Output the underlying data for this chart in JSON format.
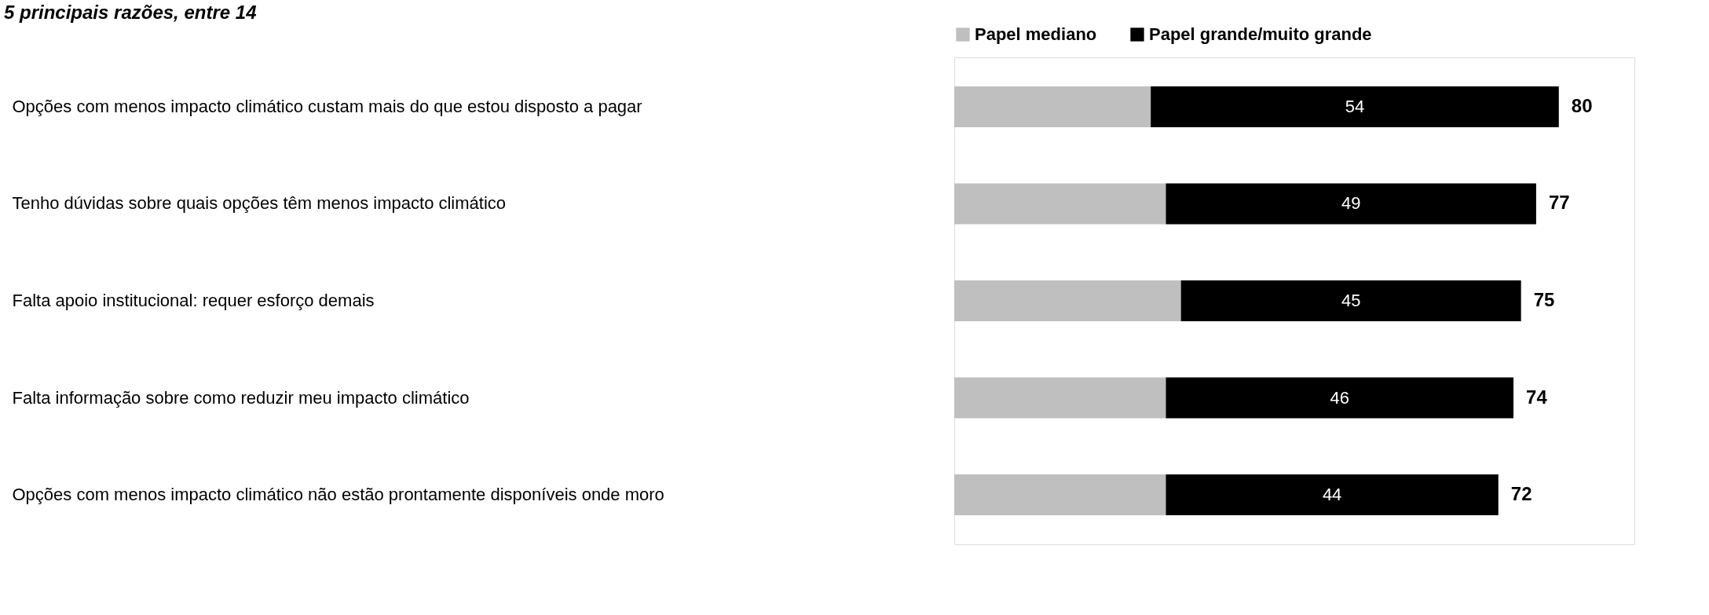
{
  "chart_data": {
    "type": "bar",
    "orientation": "horizontal",
    "stacked": true,
    "title": "5 principais razões, entre 14",
    "categories": [
      "Opções com menos impacto climático custam mais do que estou disposto a pagar",
      "Tenho dúvidas sobre quais opções têm menos impacto climático",
      "Falta apoio institucional: requer esforço demais",
      "Falta informação sobre como reduzir meu impacto climático",
      "Opções com menos impacto climático não estão prontamente disponíveis onde moro"
    ],
    "series": [
      {
        "name": "Papel mediano",
        "color": "#bfbfbf",
        "values": [
          26,
          28,
          30,
          28,
          28
        ]
      },
      {
        "name": "Papel grande/muito grande",
        "color": "#000000",
        "values": [
          54,
          49,
          45,
          46,
          44
        ],
        "value_labels": [
          "54",
          "49",
          "45",
          "46",
          "44"
        ]
      }
    ],
    "totals": [
      "80",
      "77",
      "75",
      "74",
      "72"
    ],
    "xlim": [
      0,
      90
    ],
    "tick_labels": "y",
    "legend": "top"
  }
}
